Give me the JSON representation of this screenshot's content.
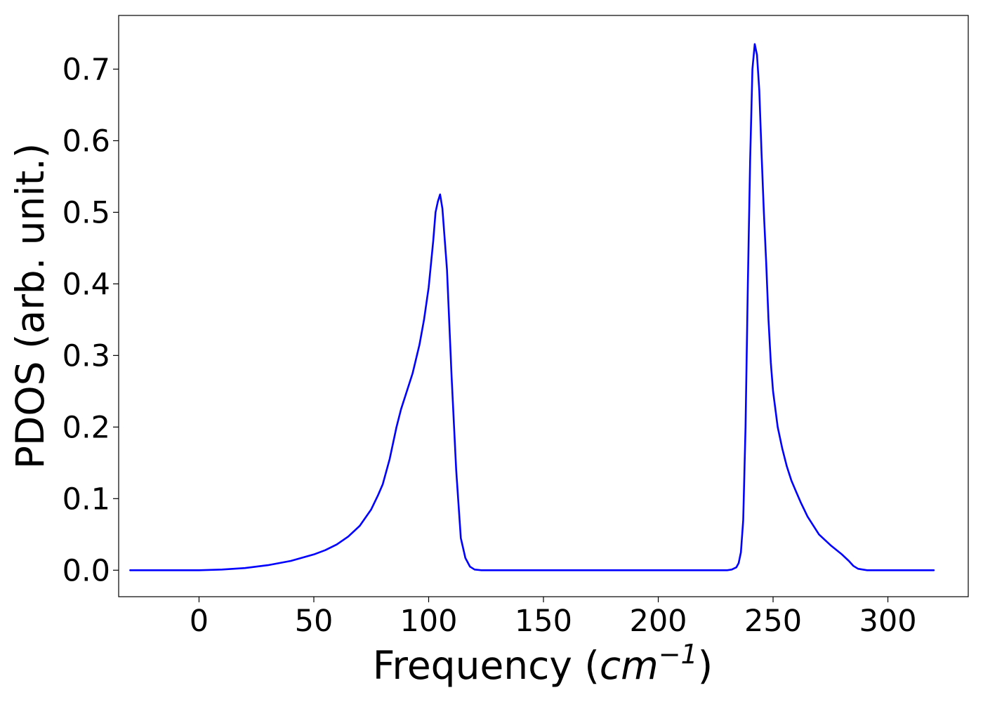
{
  "chart_data": {
    "type": "line",
    "title": "",
    "xlabel_prefix": "Frequency (",
    "xlabel_unit_base": "cm",
    "xlabel_unit_exp": "−1",
    "xlabel_suffix": ")",
    "ylabel": "PDOS (arb. unit.)",
    "xlim": [
      -35,
      335
    ],
    "ylim": [
      -0.037,
      0.775
    ],
    "xticks": [
      0,
      50,
      100,
      150,
      200,
      250,
      300
    ],
    "xtick_labels": [
      "0",
      "50",
      "100",
      "150",
      "200",
      "250",
      "300"
    ],
    "yticks": [
      0.0,
      0.1,
      0.2,
      0.3,
      0.4,
      0.5,
      0.6,
      0.7
    ],
    "ytick_labels": [
      "0.0",
      "0.1",
      "0.2",
      "0.3",
      "0.4",
      "0.5",
      "0.6",
      "0.7"
    ],
    "grid": false,
    "legend": "none",
    "series": [
      {
        "color": "#0000ff",
        "x": [
          -30,
          0,
          10,
          20,
          30,
          40,
          50,
          55,
          60,
          65,
          70,
          75,
          78,
          80,
          83,
          86,
          88,
          90,
          93,
          96,
          98,
          100,
          102,
          103,
          104,
          105,
          106,
          108,
          110,
          112,
          114,
          116,
          118,
          120,
          123,
          130,
          150,
          200,
          230,
          232,
          234,
          235,
          236,
          237,
          238,
          239,
          240,
          241,
          242,
          243,
          244,
          245,
          246,
          247,
          248,
          249,
          250,
          252,
          254,
          256,
          258,
          260,
          262,
          265,
          270,
          275,
          280,
          283,
          285,
          287,
          289,
          291,
          293,
          295,
          300,
          320
        ],
        "y": [
          0.0,
          0.0,
          0.001,
          0.003,
          0.007,
          0.013,
          0.022,
          0.028,
          0.036,
          0.047,
          0.062,
          0.085,
          0.105,
          0.12,
          0.155,
          0.2,
          0.225,
          0.245,
          0.275,
          0.315,
          0.35,
          0.395,
          0.46,
          0.5,
          0.515,
          0.525,
          0.505,
          0.42,
          0.27,
          0.14,
          0.045,
          0.017,
          0.005,
          0.001,
          0.0,
          0.0,
          0.0,
          0.0,
          0.0,
          0.001,
          0.004,
          0.01,
          0.025,
          0.07,
          0.2,
          0.4,
          0.57,
          0.7,
          0.735,
          0.72,
          0.67,
          0.58,
          0.5,
          0.43,
          0.35,
          0.29,
          0.25,
          0.2,
          0.17,
          0.145,
          0.125,
          0.11,
          0.095,
          0.075,
          0.05,
          0.035,
          0.022,
          0.013,
          0.006,
          0.002,
          0.001,
          0.0,
          0.0,
          0.0,
          0.0,
          0.0
        ]
      }
    ]
  }
}
